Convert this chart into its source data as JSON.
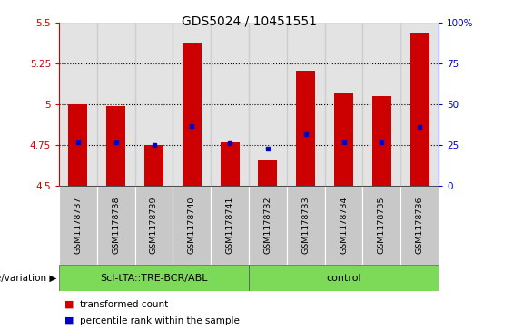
{
  "title": "GDS5024 / 10451551",
  "categories": [
    "GSM1178737",
    "GSM1178738",
    "GSM1178739",
    "GSM1178740",
    "GSM1178741",
    "GSM1178732",
    "GSM1178733",
    "GSM1178734",
    "GSM1178735",
    "GSM1178736"
  ],
  "bar_values": [
    5.0,
    4.99,
    4.75,
    5.38,
    4.77,
    4.66,
    5.21,
    5.07,
    5.05,
    5.44
  ],
  "blue_dot_values": [
    4.77,
    4.77,
    4.75,
    4.87,
    4.76,
    4.73,
    4.82,
    4.77,
    4.77,
    4.86
  ],
  "bar_base": 4.5,
  "ylim": [
    4.5,
    5.5
  ],
  "yticks": [
    4.5,
    4.75,
    5.0,
    5.25,
    5.5
  ],
  "ytick_labels": [
    "4.5",
    "4.75",
    "5",
    "5.25",
    "5.5"
  ],
  "grid_values": [
    4.75,
    5.0,
    5.25
  ],
  "bar_color": "#cc0000",
  "blue_dot_color": "#0000cc",
  "right_yticks": [
    0,
    25,
    50,
    75,
    100
  ],
  "right_ytick_labels": [
    "0",
    "25",
    "50",
    "75",
    "100%"
  ],
  "right_ylim": [
    0,
    100
  ],
  "group1_label": "Scl-tTA::TRE-BCR/ABL",
  "group2_label": "control",
  "group1_indices": [
    0,
    1,
    2,
    3,
    4
  ],
  "group2_indices": [
    5,
    6,
    7,
    8,
    9
  ],
  "group_label_prefix": "genotype/variation",
  "group_bg_color": "#7dda58",
  "bar_width": 0.5,
  "legend_red_label": "transformed count",
  "legend_blue_label": "percentile rank within the sample",
  "left_color": "#cc0000",
  "right_color": "#0000cc",
  "tick_fontsize": 7.5,
  "title_fontsize": 10,
  "cat_fontsize": 6.8,
  "group_fontsize": 8,
  "legend_fontsize": 7.5,
  "geno_label_fontsize": 7.5,
  "cell_bg_color": "#c8c8c8",
  "cell_border_color": "#ffffff"
}
